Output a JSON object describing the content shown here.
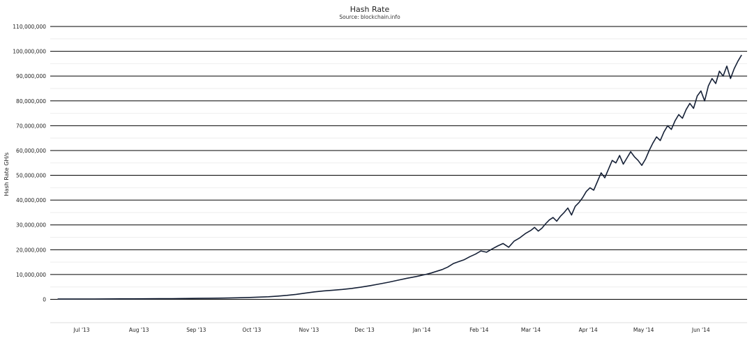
{
  "chart_data": {
    "type": "line",
    "title": "Hash Rate",
    "subtitle": "Source: blockchain.info",
    "ylabel": "Hash Rate GH/s",
    "xlabel": "",
    "ylim": [
      -8000000,
      110000000
    ],
    "xlim": [
      "2013-06-14",
      "2014-06-26"
    ],
    "grid": true,
    "legend": "none",
    "line_color": "#152036",
    "yticks": [
      {
        "value": 0,
        "label": "0"
      },
      {
        "value": 10000000,
        "label": "10,000,000"
      },
      {
        "value": 20000000,
        "label": "20,000,000"
      },
      {
        "value": 30000000,
        "label": "30,000,000"
      },
      {
        "value": 40000000,
        "label": "40,000,000"
      },
      {
        "value": 50000000,
        "label": "50,000,000"
      },
      {
        "value": 60000000,
        "label": "60,000,000"
      },
      {
        "value": 70000000,
        "label": "70,000,000"
      },
      {
        "value": 80000000,
        "label": "80,000,000"
      },
      {
        "value": 90000000,
        "label": "90,000,000"
      },
      {
        "value": 100000000,
        "label": "100,000,000"
      },
      {
        "value": 110000000,
        "label": "110,000,000"
      }
    ],
    "xticks": [
      {
        "date": "2013-07-01",
        "label": "Jul '13"
      },
      {
        "date": "2013-08-01",
        "label": "Aug '13"
      },
      {
        "date": "2013-09-01",
        "label": "Sep '13"
      },
      {
        "date": "2013-10-01",
        "label": "Oct '13"
      },
      {
        "date": "2013-11-01",
        "label": "Nov '13"
      },
      {
        "date": "2013-12-01",
        "label": "Dec '13"
      },
      {
        "date": "2014-01-01",
        "label": "Jan '14"
      },
      {
        "date": "2014-02-01",
        "label": "Feb '14"
      },
      {
        "date": "2014-03-01",
        "label": "Mar '14"
      },
      {
        "date": "2014-04-01",
        "label": "Apr '14"
      },
      {
        "date": "2014-05-01",
        "label": "May '14"
      },
      {
        "date": "2014-06-01",
        "label": "Jun '14"
      }
    ],
    "series": [
      {
        "x": [
          "2013-06-18",
          "2013-06-25",
          "2013-07-01",
          "2013-07-08",
          "2013-07-15",
          "2013-07-22",
          "2013-07-29",
          "2013-08-05",
          "2013-08-12",
          "2013-08-19",
          "2013-08-26",
          "2013-09-02",
          "2013-09-09",
          "2013-09-16",
          "2013-09-23",
          "2013-09-30",
          "2013-10-05",
          "2013-10-10",
          "2013-10-15",
          "2013-10-20",
          "2013-10-25",
          "2013-10-30",
          "2013-11-04",
          "2013-11-09",
          "2013-11-14",
          "2013-11-19",
          "2013-11-24",
          "2013-11-29",
          "2013-12-04",
          "2013-12-09",
          "2013-12-14",
          "2013-12-19",
          "2013-12-24",
          "2013-12-29",
          "2014-01-03",
          "2014-01-06",
          "2014-01-09",
          "2014-01-12",
          "2014-01-15",
          "2014-01-18",
          "2014-01-21",
          "2014-01-24",
          "2014-01-27",
          "2014-01-30",
          "2014-02-02",
          "2014-02-05",
          "2014-02-08",
          "2014-02-11",
          "2014-02-14",
          "2014-02-17",
          "2014-02-20",
          "2014-02-23",
          "2014-02-26",
          "2014-03-01",
          "2014-03-03",
          "2014-03-05",
          "2014-03-07",
          "2014-03-09",
          "2014-03-11",
          "2014-03-13",
          "2014-03-15",
          "2014-03-17",
          "2014-03-19",
          "2014-03-21",
          "2014-03-23",
          "2014-03-25",
          "2014-03-27",
          "2014-03-29",
          "2014-03-31",
          "2014-04-02",
          "2014-04-04",
          "2014-04-06",
          "2014-04-08",
          "2014-04-10",
          "2014-04-12",
          "2014-04-14",
          "2014-04-16",
          "2014-04-18",
          "2014-04-20",
          "2014-04-22",
          "2014-04-24",
          "2014-04-26",
          "2014-04-28",
          "2014-04-30",
          "2014-05-02",
          "2014-05-04",
          "2014-05-06",
          "2014-05-08",
          "2014-05-10",
          "2014-05-12",
          "2014-05-14",
          "2014-05-16",
          "2014-05-18",
          "2014-05-20",
          "2014-05-22",
          "2014-05-24",
          "2014-05-26",
          "2014-05-28",
          "2014-05-30",
          "2014-06-01",
          "2014-06-03",
          "2014-06-05",
          "2014-06-07",
          "2014-06-09",
          "2014-06-11",
          "2014-06-13",
          "2014-06-15",
          "2014-06-17",
          "2014-06-19",
          "2014-06-21",
          "2014-06-23"
        ],
        "y": [
          120000,
          130000,
          140000,
          150000,
          170000,
          190000,
          210000,
          240000,
          270000,
          300000,
          340000,
          390000,
          450000,
          520000,
          620000,
          760000,
          900000,
          1050000,
          1300000,
          1600000,
          2000000,
          2500000,
          3000000,
          3400000,
          3700000,
          4000000,
          4400000,
          4900000,
          5500000,
          6200000,
          6900000,
          7700000,
          8500000,
          9200000,
          10000000,
          10600000,
          11300000,
          12000000,
          13000000,
          14400000,
          15200000,
          16000000,
          17200000,
          18200000,
          19500000,
          19000000,
          20300000,
          21500000,
          22500000,
          21000000,
          23500000,
          24800000,
          26500000,
          27800000,
          29000000,
          27500000,
          28700000,
          30500000,
          32000000,
          33000000,
          31500000,
          33500000,
          35000000,
          36800000,
          34000000,
          37500000,
          39000000,
          41000000,
          43500000,
          45000000,
          44000000,
          47500000,
          51000000,
          49000000,
          52500000,
          56000000,
          55000000,
          58000000,
          54500000,
          57000000,
          59500000,
          57500000,
          56000000,
          54000000,
          56500000,
          60000000,
          63000000,
          65500000,
          64000000,
          67500000,
          70000000,
          68500000,
          72000000,
          74500000,
          73000000,
          76500000,
          79000000,
          77000000,
          82000000,
          84000000,
          80000000,
          86000000,
          89000000,
          87000000,
          92000000,
          90000000,
          94000000,
          89000000,
          93000000,
          96000000,
          98500000
        ]
      }
    ]
  }
}
